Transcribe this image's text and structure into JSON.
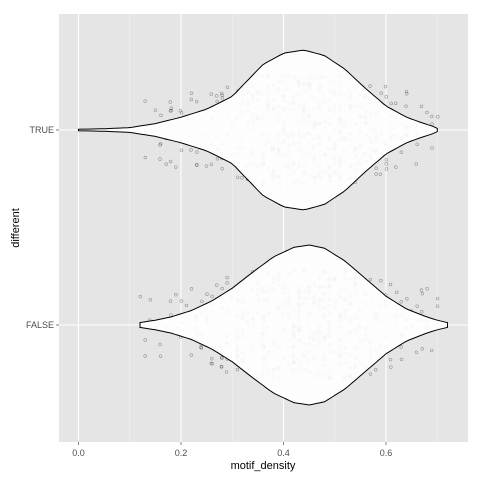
{
  "chart_data": {
    "type": "violin",
    "xlabel": "motif_density",
    "ylabel": "different",
    "xlim": [
      -0.05,
      0.76
    ],
    "x_ticks": [
      "0.0",
      "0.2",
      "0.4",
      "0.6"
    ],
    "x_tick_values": [
      0.0,
      0.2,
      0.4,
      0.6
    ],
    "categories": [
      "TRUE",
      "FALSE"
    ],
    "grid": true,
    "legend": "none",
    "colors": {
      "panel": "#e5e5e5",
      "grid_major": "#ffffff",
      "grid_minor": "#f2f2f2",
      "violin_fill": "#ffffff",
      "violin_stroke": "#000000",
      "points": "#000000"
    },
    "series": [
      {
        "category": "TRUE",
        "range": [
          0.0,
          0.7
        ],
        "density_profile": [
          [
            0.0,
            0.01
          ],
          [
            0.05,
            0.015
          ],
          [
            0.1,
            0.03
          ],
          [
            0.15,
            0.08
          ],
          [
            0.2,
            0.16
          ],
          [
            0.25,
            0.26
          ],
          [
            0.3,
            0.42
          ],
          [
            0.33,
            0.62
          ],
          [
            0.36,
            0.82
          ],
          [
            0.4,
            0.96
          ],
          [
            0.44,
            1.0
          ],
          [
            0.48,
            0.93
          ],
          [
            0.52,
            0.76
          ],
          [
            0.56,
            0.52
          ],
          [
            0.6,
            0.3
          ],
          [
            0.64,
            0.16
          ],
          [
            0.67,
            0.09
          ],
          [
            0.69,
            0.05
          ],
          [
            0.7,
            0.02
          ]
        ],
        "point_range": [
          0.12,
          0.7
        ]
      },
      {
        "category": "FALSE",
        "range": [
          0.12,
          0.72
        ],
        "density_profile": [
          [
            0.12,
            0.03
          ],
          [
            0.15,
            0.06
          ],
          [
            0.18,
            0.1
          ],
          [
            0.22,
            0.18
          ],
          [
            0.26,
            0.3
          ],
          [
            0.3,
            0.46
          ],
          [
            0.34,
            0.66
          ],
          [
            0.38,
            0.85
          ],
          [
            0.42,
            0.97
          ],
          [
            0.45,
            1.0
          ],
          [
            0.48,
            0.96
          ],
          [
            0.52,
            0.8
          ],
          [
            0.56,
            0.58
          ],
          [
            0.6,
            0.36
          ],
          [
            0.64,
            0.2
          ],
          [
            0.68,
            0.1
          ],
          [
            0.7,
            0.06
          ],
          [
            0.72,
            0.03
          ]
        ],
        "point_range": [
          0.12,
          0.72
        ]
      }
    ]
  }
}
